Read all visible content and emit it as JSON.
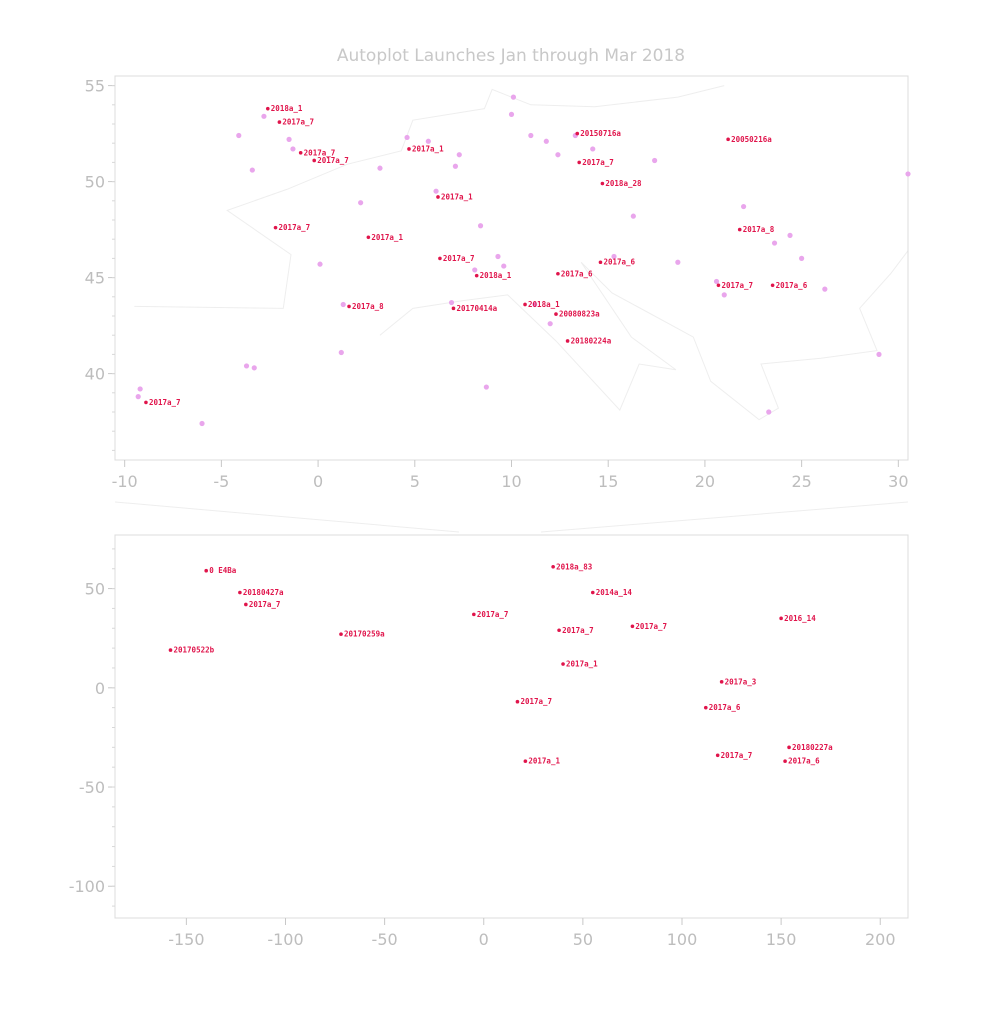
{
  "title": "Autoplot Launches Jan through Mar 2018",
  "colors": {
    "label": "#e0144b",
    "point": "#e9a6ec",
    "axis": "#c8c8c8",
    "frame": "#dcdcdc",
    "coast": "#eeeeee"
  },
  "chart_data": [
    {
      "type": "scatter",
      "panel": "europe-zoom",
      "title": "Autoplot Launches Jan through Mar 2018",
      "xlim": [
        -10.5,
        30.5
      ],
      "ylim": [
        35.5,
        55.5
      ],
      "xticks": [
        -10,
        -5,
        0,
        5,
        10,
        15,
        20,
        25,
        30
      ],
      "yticks": [
        40,
        45,
        50,
        55
      ],
      "grid": false,
      "background_points": [
        [
          -9.2,
          39.2
        ],
        [
          -9.3,
          38.8
        ],
        [
          -6.0,
          37.4
        ],
        [
          -3.7,
          40.4
        ],
        [
          -3.3,
          40.3
        ],
        [
          1.3,
          43.6
        ],
        [
          1.2,
          41.1
        ],
        [
          0.1,
          45.7
        ],
        [
          -3.4,
          50.6
        ],
        [
          -4.1,
          52.4
        ],
        [
          -2.8,
          53.4
        ],
        [
          -1.5,
          52.2
        ],
        [
          -1.3,
          51.7
        ],
        [
          2.2,
          48.9
        ],
        [
          3.2,
          50.7
        ],
        [
          4.6,
          52.3
        ],
        [
          5.7,
          52.1
        ],
        [
          6.1,
          49.5
        ],
        [
          7.1,
          50.8
        ],
        [
          7.3,
          51.4
        ],
        [
          6.9,
          43.7
        ],
        [
          8.1,
          45.4
        ],
        [
          8.4,
          47.7
        ],
        [
          9.3,
          46.1
        ],
        [
          9.6,
          45.6
        ],
        [
          10.0,
          53.5
        ],
        [
          10.1,
          54.4
        ],
        [
          11.0,
          52.4
        ],
        [
          11.8,
          52.1
        ],
        [
          12.4,
          51.4
        ],
        [
          13.3,
          52.4
        ],
        [
          14.2,
          51.7
        ],
        [
          15.3,
          46.1
        ],
        [
          16.3,
          48.2
        ],
        [
          17.4,
          51.1
        ],
        [
          18.6,
          45.8
        ],
        [
          11.2,
          43.6
        ],
        [
          12.0,
          42.6
        ],
        [
          8.7,
          39.3
        ],
        [
          21.0,
          44.1
        ],
        [
          22.0,
          48.7
        ],
        [
          23.6,
          46.8
        ],
        [
          25.0,
          46.0
        ],
        [
          24.4,
          47.2
        ],
        [
          26.2,
          44.4
        ],
        [
          29.0,
          41.0
        ],
        [
          30.5,
          50.4
        ],
        [
          23.3,
          38.0
        ],
        [
          20.6,
          44.8
        ]
      ],
      "labeled_points": [
        {
          "x": -2.6,
          "y": 53.8,
          "label": "2018a_1"
        },
        {
          "x": -2.0,
          "y": 53.1,
          "label": "2017a_7"
        },
        {
          "x": -0.9,
          "y": 51.5,
          "label": "2017a_7"
        },
        {
          "x": -0.2,
          "y": 51.1,
          "label": "2017a_7"
        },
        {
          "x": -2.2,
          "y": 47.6,
          "label": "2017a_7"
        },
        {
          "x": 2.6,
          "y": 47.1,
          "label": "2017a_1"
        },
        {
          "x": 1.6,
          "y": 43.5,
          "label": "2017a_8"
        },
        {
          "x": -8.9,
          "y": 38.5,
          "label": "2017a_7"
        },
        {
          "x": 4.7,
          "y": 51.7,
          "label": "2017a_1"
        },
        {
          "x": 6.2,
          "y": 49.2,
          "label": "2017a_1"
        },
        {
          "x": 6.3,
          "y": 46.0,
          "label": "2017a_7"
        },
        {
          "x": 8.2,
          "y": 45.1,
          "label": "2018a_1"
        },
        {
          "x": 7.0,
          "y": 43.4,
          "label": "20170414a"
        },
        {
          "x": 10.7,
          "y": 43.6,
          "label": "2018a_1"
        },
        {
          "x": 12.3,
          "y": 43.1,
          "label": "20080823a"
        },
        {
          "x": 12.9,
          "y": 41.7,
          "label": "20180224a"
        },
        {
          "x": 12.4,
          "y": 45.2,
          "label": "2017a_6"
        },
        {
          "x": 14.6,
          "y": 45.8,
          "label": "2017a_6"
        },
        {
          "x": 13.5,
          "y": 51.0,
          "label": "2017a_7"
        },
        {
          "x": 14.7,
          "y": 49.9,
          "label": "2018a_28"
        },
        {
          "x": 13.4,
          "y": 52.5,
          "label": "20150716a"
        },
        {
          "x": 21.2,
          "y": 52.2,
          "label": "20050216a"
        },
        {
          "x": 21.8,
          "y": 47.5,
          "label": "2017a_8"
        },
        {
          "x": 20.7,
          "y": 44.6,
          "label": "2017a_7"
        },
        {
          "x": 23.5,
          "y": 44.6,
          "label": "2017a_6"
        }
      ]
    },
    {
      "type": "scatter",
      "panel": "world",
      "xlim": [
        -186,
        214
      ],
      "ylim": [
        -116,
        77
      ],
      "xticks": [
        -150,
        -100,
        -50,
        0,
        50,
        100,
        150,
        200
      ],
      "yticks": [
        50,
        0,
        -50,
        -100
      ],
      "grid": false,
      "labeled_points": [
        {
          "x": -140,
          "y": 59,
          "label": "0 E4Ba"
        },
        {
          "x": -123,
          "y": 48,
          "label": "20180427a"
        },
        {
          "x": -120,
          "y": 42,
          "label": "2017a_7"
        },
        {
          "x": -158,
          "y": 19,
          "label": "20170522b"
        },
        {
          "x": -72,
          "y": 27,
          "label": "20170259a"
        },
        {
          "x": 35,
          "y": 61,
          "label": "2018a_83"
        },
        {
          "x": 55,
          "y": 48,
          "label": "2014a_14"
        },
        {
          "x": -5,
          "y": 37,
          "label": "2017a_7"
        },
        {
          "x": 38,
          "y": 29,
          "label": "2017a_7"
        },
        {
          "x": 75,
          "y": 31,
          "label": "2017a_7"
        },
        {
          "x": 40,
          "y": 12,
          "label": "2017a_1"
        },
        {
          "x": 17,
          "y": -7,
          "label": "2017a_7"
        },
        {
          "x": 120,
          "y": 3,
          "label": "2017a_3"
        },
        {
          "x": 112,
          "y": -10,
          "label": "2017a_6"
        },
        {
          "x": 118,
          "y": -34,
          "label": "2017a_7"
        },
        {
          "x": 21,
          "y": -37,
          "label": "2017a_1"
        },
        {
          "x": 154,
          "y": -30,
          "label": "20180227a"
        },
        {
          "x": 152,
          "y": -37,
          "label": "2017a_6"
        },
        {
          "x": 150,
          "y": 35,
          "label": "2016_14"
        }
      ]
    }
  ]
}
